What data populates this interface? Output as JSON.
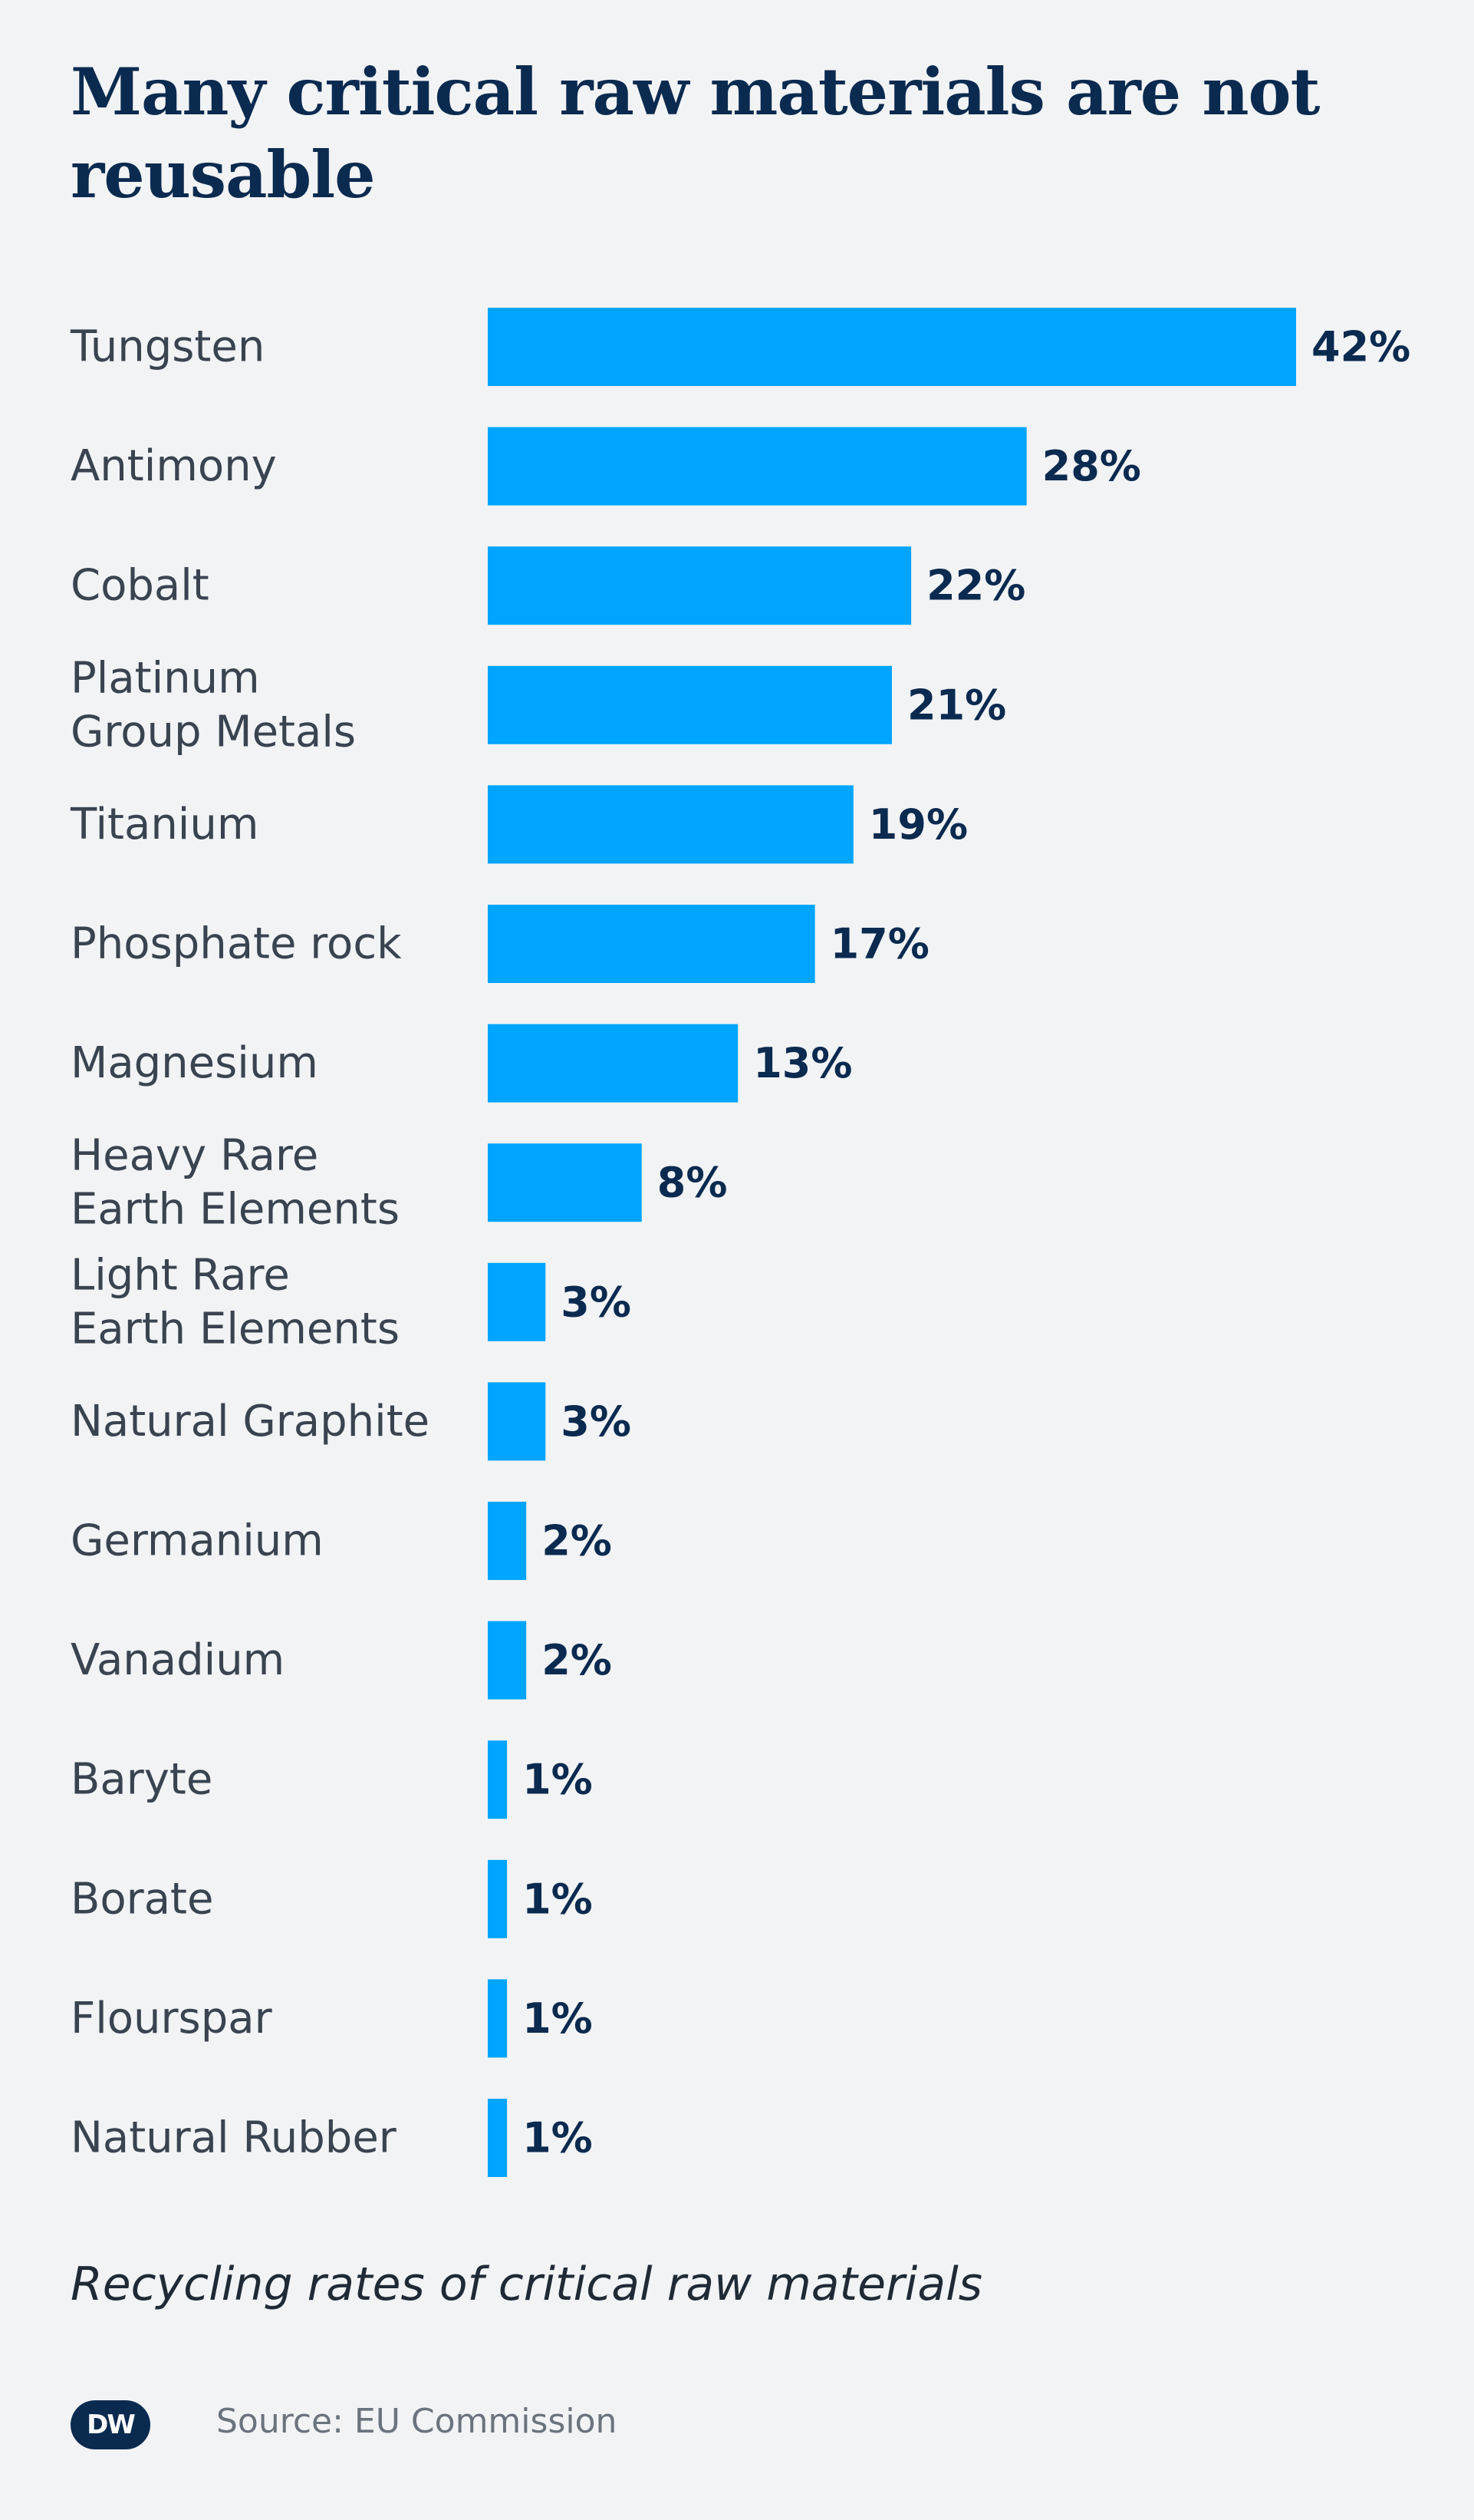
{
  "header": {
    "title": "Many critical raw materials are not reusable"
  },
  "footer": {
    "caption": "Recycling rates of critical raw materials",
    "source": "Source: EU Commission",
    "logo_text": "DW"
  },
  "colors": {
    "bar": "#00a5ff",
    "value_text": "#0b2a4f",
    "label_text": "#3a4350",
    "background": "#f1f3f5"
  },
  "chart_data": {
    "type": "bar",
    "orientation": "horizontal",
    "categories": [
      [
        "Tungsten"
      ],
      [
        "Antimony"
      ],
      [
        "Cobalt"
      ],
      [
        "Platinum",
        "Group Metals"
      ],
      [
        "Titanium"
      ],
      [
        "Phosphate rock"
      ],
      [
        "Magnesium"
      ],
      [
        "Heavy Rare",
        "Earth Elements"
      ],
      [
        "Light Rare",
        "Earth Elements"
      ],
      [
        "Natural Graphite"
      ],
      [
        "Germanium"
      ],
      [
        "Vanadium"
      ],
      [
        "Baryte"
      ],
      [
        "Borate"
      ],
      [
        "Flourspar"
      ],
      [
        "Natural Rubber"
      ]
    ],
    "values": [
      42,
      28,
      22,
      21,
      19,
      17,
      13,
      8,
      3,
      3,
      2,
      2,
      1,
      1,
      1,
      1
    ],
    "value_labels": [
      "42%",
      "28%",
      "22%",
      "21%",
      "19%",
      "17%",
      "13%",
      "8%",
      "3%",
      "3%",
      "2%",
      "2%",
      "1%",
      "1%",
      "1%",
      "1%"
    ],
    "unit": "%",
    "grid": false,
    "legend": "none"
  }
}
